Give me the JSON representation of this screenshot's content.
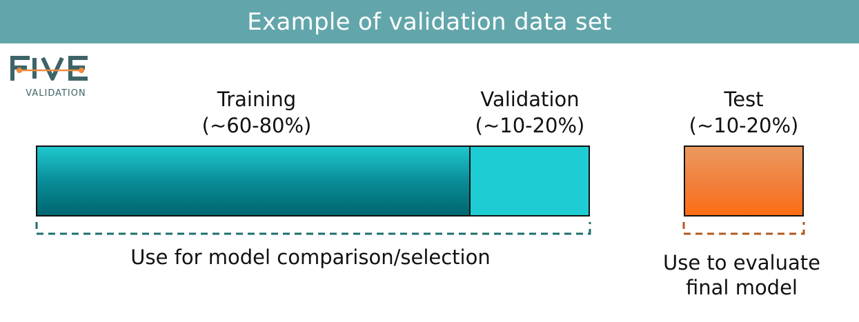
{
  "header": {
    "title": "Example of validation data set"
  },
  "logo": {
    "wordmark": "FIVE",
    "subtitle": "VALIDATION"
  },
  "segments": {
    "training": {
      "name": "Training",
      "range": "(~60-80%)",
      "color": "#0a8d98"
    },
    "validation": {
      "name": "Validation",
      "range": "(~10-20%)",
      "color": "#1ecdd4"
    },
    "test": {
      "name": "Test",
      "range": "(~10-20%)",
      "color": "#f17f3a"
    }
  },
  "captions": {
    "left": "Use for model comparison/selection",
    "right_line1": "Use to evaluate",
    "right_line2": "final model"
  },
  "colors": {
    "banner": "#62a6ab",
    "bracket_left": "#1d6e6c",
    "bracket_right": "#b05a1d"
  }
}
